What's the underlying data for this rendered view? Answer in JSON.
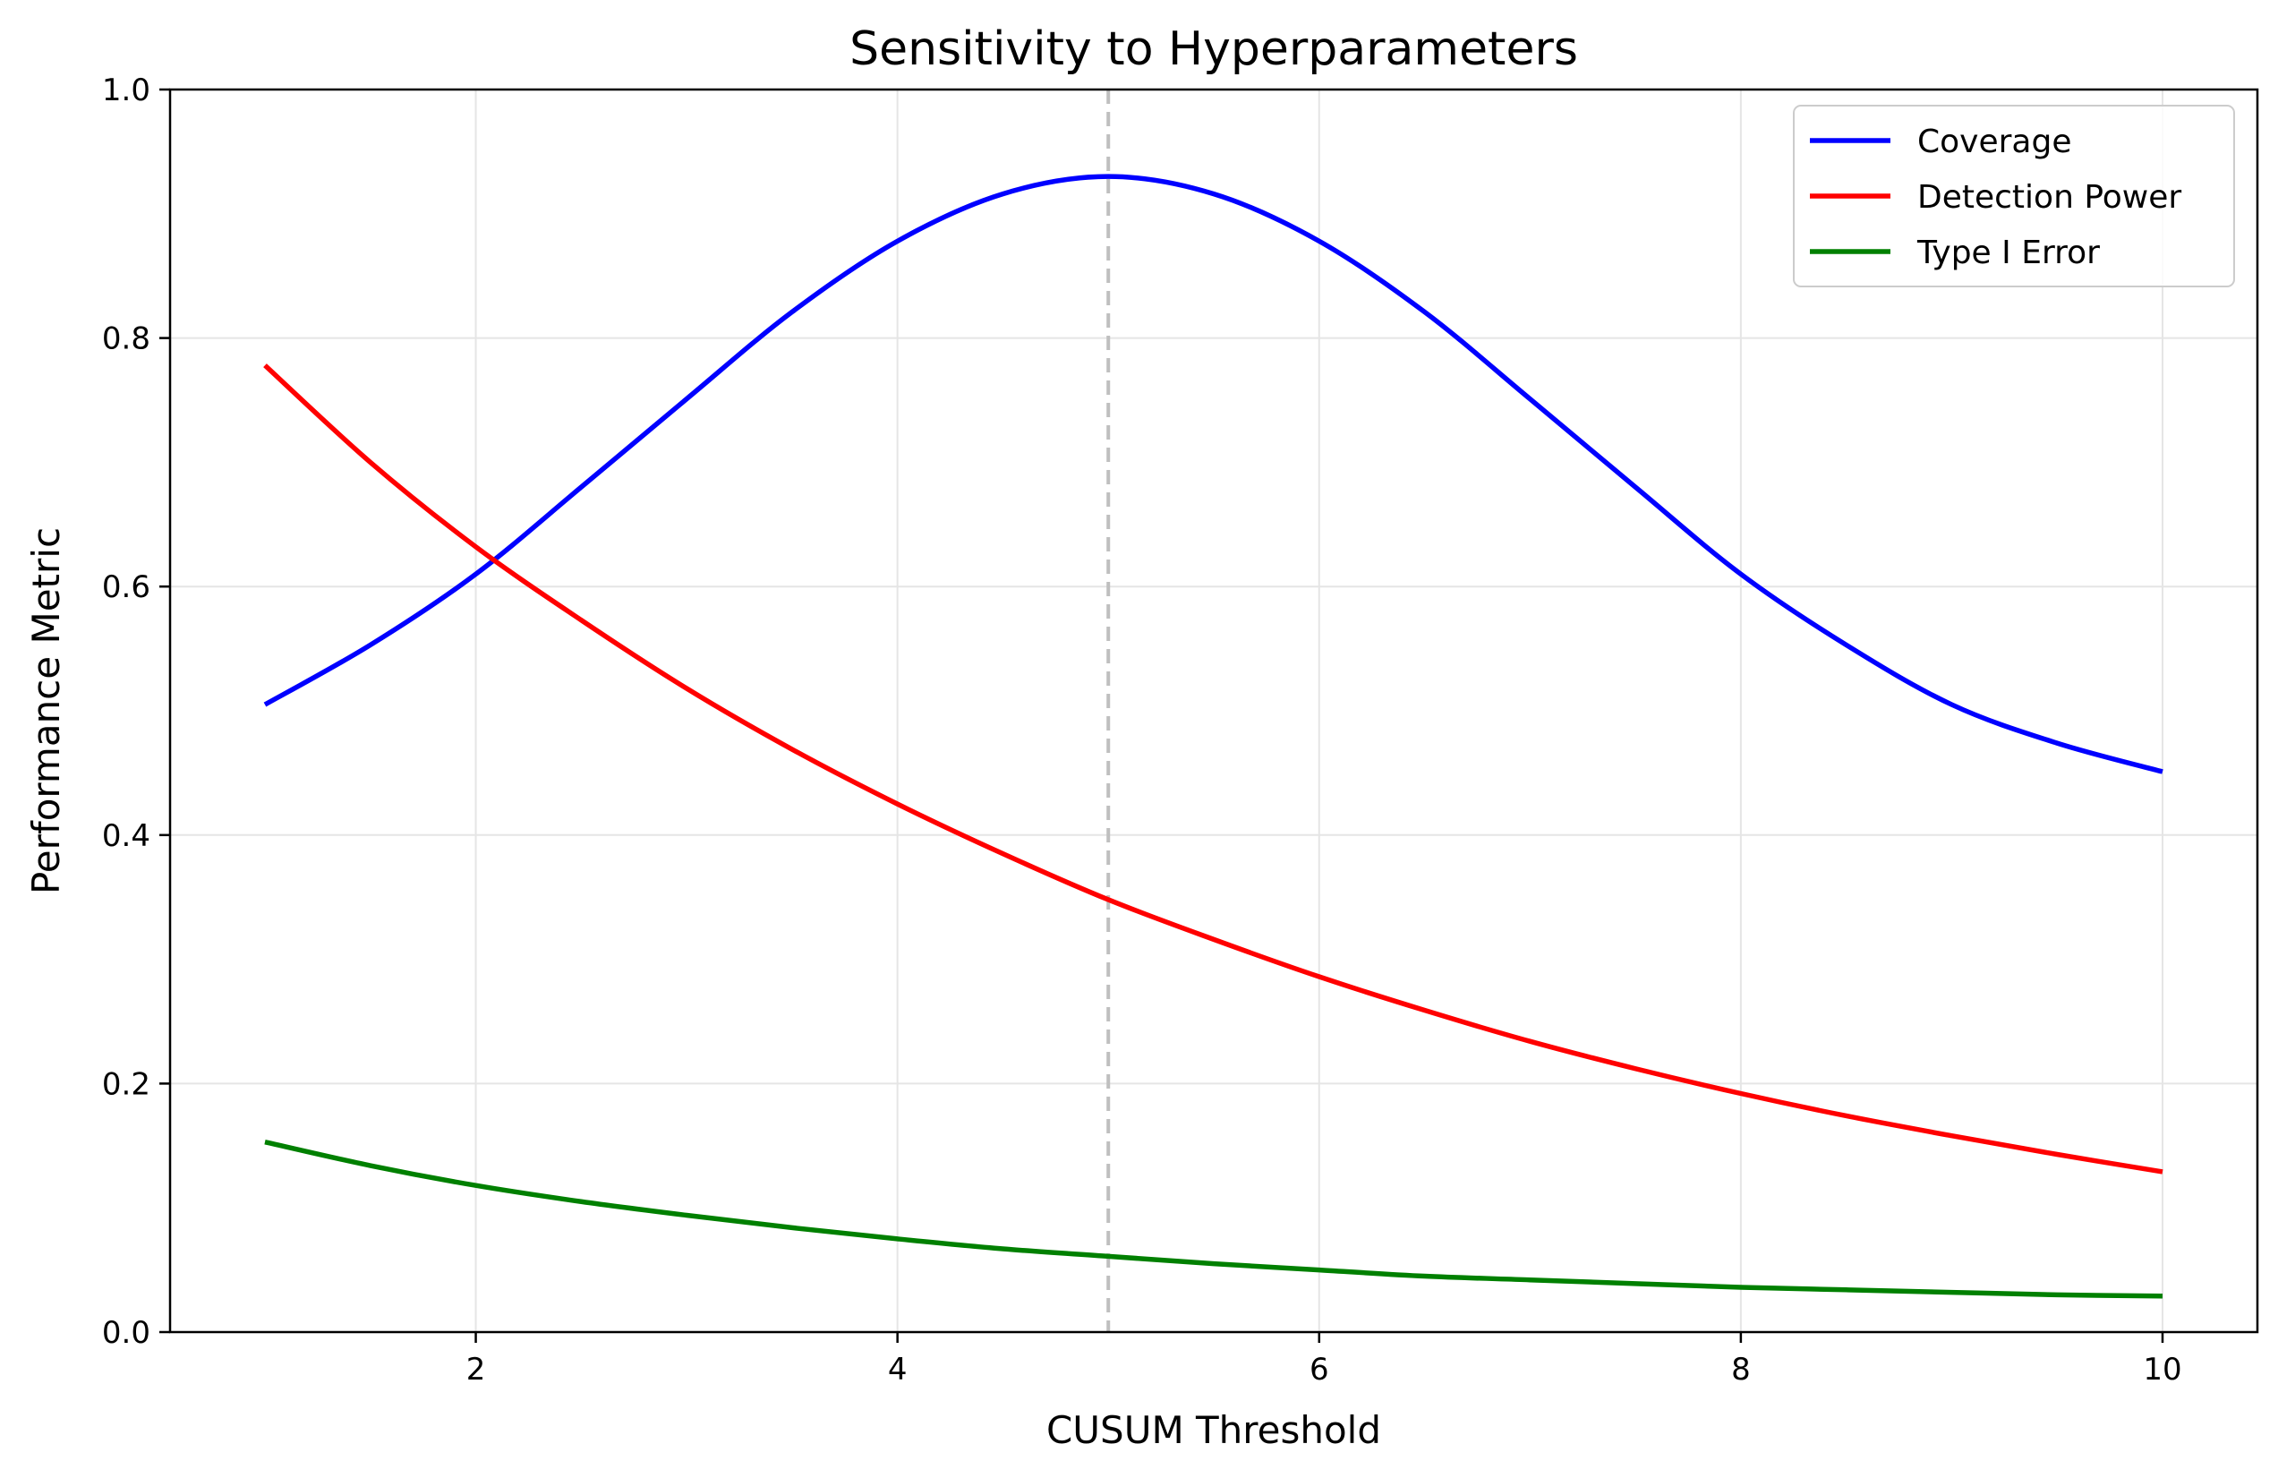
{
  "chart_data": {
    "type": "line",
    "title": "Sensitivity to Hyperparameters",
    "xlabel": "CUSUM Threshold",
    "ylabel": "Performance Metric",
    "xlim": [
      0.55,
      10.45
    ],
    "ylim": [
      0.0,
      1.0
    ],
    "xticks": [
      2,
      4,
      6,
      8,
      10
    ],
    "yticks": [
      0.0,
      0.2,
      0.4,
      0.6,
      0.8,
      1.0
    ],
    "xtick_labels": [
      "2",
      "4",
      "6",
      "8",
      "10"
    ],
    "ytick_labels": [
      "0.0",
      "0.2",
      "0.4",
      "0.6",
      "0.8",
      "1.0"
    ],
    "grid": true,
    "legend_position": "top-right",
    "reference_line": {
      "axis": "x",
      "value": 5,
      "style": "dashed",
      "color": "#bfbfbf"
    },
    "x": [
      1,
      1.5,
      2,
      2.5,
      3,
      3.5,
      4,
      4.5,
      5,
      5.5,
      6,
      6.5,
      7,
      7.5,
      8,
      8.5,
      9,
      9.5,
      10
    ],
    "series": [
      {
        "name": "Coverage",
        "color": "#0000ff",
        "values": [
          0.505,
          0.553,
          0.61,
          0.68,
          0.751,
          0.821,
          0.878,
          0.916,
          0.93,
          0.916,
          0.878,
          0.821,
          0.751,
          0.68,
          0.61,
          0.553,
          0.505,
          0.474,
          0.451
        ]
      },
      {
        "name": "Detection Power",
        "color": "#ff0000",
        "values": [
          0.778,
          0.7,
          0.632,
          0.573,
          0.518,
          0.469,
          0.425,
          0.385,
          0.348,
          0.316,
          0.286,
          0.259,
          0.234,
          0.212,
          0.192,
          0.174,
          0.158,
          0.143,
          0.129
        ]
      },
      {
        "name": "Type I Error",
        "color": "#008000",
        "values": [
          0.153,
          0.134,
          0.118,
          0.105,
          0.094,
          0.084,
          0.075,
          0.067,
          0.061,
          0.055,
          0.05,
          0.045,
          0.042,
          0.039,
          0.036,
          0.034,
          0.032,
          0.03,
          0.029
        ]
      }
    ]
  }
}
